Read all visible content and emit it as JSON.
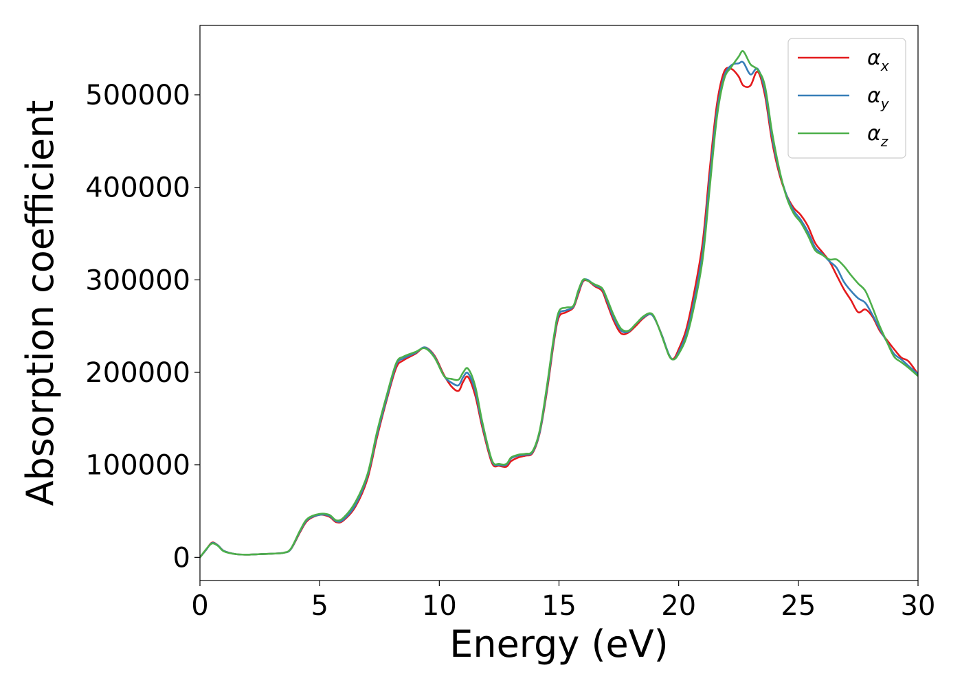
{
  "chart_data": {
    "type": "line",
    "title": "",
    "xlabel": "Energy (eV)",
    "ylabel": "Absorption coefficient",
    "xlim": [
      0,
      30
    ],
    "ylim": [
      -25000,
      575000
    ],
    "xticks": [
      0,
      5,
      10,
      15,
      20,
      25,
      30
    ],
    "xtick_labels": [
      "0",
      "5",
      "10",
      "15",
      "20",
      "25",
      "30"
    ],
    "yticks": [
      0,
      100000,
      200000,
      300000,
      400000,
      500000
    ],
    "ytick_labels": [
      "0",
      "100000",
      "200000",
      "300000",
      "400000",
      "500000"
    ],
    "grid": false,
    "legend_position": "top-right",
    "x": [
      0,
      0.25,
      0.5,
      0.75,
      1.0,
      1.5,
      2.0,
      2.5,
      3.0,
      3.5,
      3.8,
      4.2,
      4.5,
      5.0,
      5.4,
      5.7,
      6.0,
      6.5,
      7.0,
      7.4,
      7.8,
      8.2,
      8.5,
      9.0,
      9.4,
      9.8,
      10.2,
      10.5,
      10.8,
      11.0,
      11.2,
      11.5,
      11.8,
      12.2,
      12.5,
      12.8,
      13.0,
      13.3,
      13.6,
      13.9,
      14.2,
      14.5,
      14.8,
      15.0,
      15.3,
      15.6,
      15.8,
      16.0,
      16.2,
      16.5,
      16.8,
      17.0,
      17.3,
      17.6,
      17.9,
      18.2,
      18.5,
      18.8,
      19.0,
      19.3,
      19.6,
      19.8,
      20.0,
      20.3,
      20.6,
      21.0,
      21.3,
      21.6,
      21.9,
      22.2,
      22.5,
      22.7,
      23.0,
      23.3,
      23.6,
      23.9,
      24.2,
      24.5,
      24.8,
      25.1,
      25.4,
      25.7,
      26.0,
      26.3,
      26.6,
      26.9,
      27.2,
      27.5,
      27.8,
      28.1,
      28.4,
      28.7,
      29.0,
      29.3,
      29.6,
      30.0
    ],
    "series": [
      {
        "name": "α_x",
        "color": "#e41a1c",
        "values": [
          0,
          8000,
          16000,
          13000,
          7000,
          3500,
          3000,
          3500,
          4000,
          5000,
          9000,
          28000,
          40000,
          46000,
          44000,
          38000,
          40000,
          55000,
          85000,
          130000,
          170000,
          205000,
          213000,
          220000,
          227000,
          218000,
          197000,
          185000,
          180000,
          190000,
          195000,
          175000,
          140000,
          102000,
          99000,
          98000,
          104000,
          108000,
          110000,
          113000,
          135000,
          180000,
          235000,
          260000,
          265000,
          270000,
          284000,
          298000,
          299000,
          293000,
          288000,
          275000,
          255000,
          242000,
          243000,
          250000,
          258000,
          263000,
          258000,
          240000,
          218000,
          215000,
          225000,
          245000,
          280000,
          340000,
          420000,
          490000,
          525000,
          528000,
          520000,
          510000,
          510000,
          525000,
          500000,
          450000,
          415000,
          392000,
          378000,
          370000,
          358000,
          340000,
          330000,
          320000,
          305000,
          290000,
          278000,
          265000,
          268000,
          260000,
          245000,
          235000,
          225000,
          216000,
          212000,
          198000
        ]
      },
      {
        "name": "α_y",
        "color": "#377eb8",
        "values": [
          0,
          8000,
          15500,
          13000,
          7000,
          3500,
          3000,
          3500,
          4000,
          5000,
          9000,
          29000,
          41000,
          46000,
          45000,
          39000,
          41000,
          57000,
          88000,
          133000,
          172000,
          208000,
          215000,
          221000,
          227000,
          217000,
          196000,
          189000,
          186000,
          195000,
          199000,
          180000,
          143000,
          104000,
          100000,
          100000,
          107000,
          110000,
          111000,
          114000,
          136000,
          183000,
          238000,
          263000,
          267000,
          271000,
          286000,
          299000,
          300000,
          294000,
          290000,
          278000,
          258000,
          245000,
          244000,
          252000,
          259000,
          263000,
          258000,
          240000,
          219000,
          214000,
          222000,
          240000,
          272000,
          330000,
          410000,
          482000,
          520000,
          532000,
          534000,
          535000,
          522000,
          528000,
          505000,
          455000,
          418000,
          392000,
          375000,
          365000,
          352000,
          335000,
          328000,
          320000,
          313000,
          298000,
          288000,
          280000,
          275000,
          262000,
          247000,
          233000,
          220000,
          214000,
          207000,
          198000
        ]
      },
      {
        "name": "α_z",
        "color": "#4daf4a",
        "values": [
          0,
          8500,
          15000,
          12500,
          6500,
          3500,
          3000,
          3500,
          4000,
          5000,
          9500,
          30000,
          42000,
          47000,
          46000,
          40000,
          43000,
          60000,
          90000,
          136000,
          175000,
          210000,
          217000,
          222000,
          226000,
          216000,
          196000,
          193000,
          192000,
          200000,
          204000,
          185000,
          146000,
          105000,
          101000,
          101000,
          108000,
          111000,
          112000,
          115000,
          138000,
          186000,
          241000,
          266000,
          270000,
          272000,
          288000,
          300000,
          299000,
          295000,
          291000,
          280000,
          261000,
          247000,
          245000,
          252000,
          260000,
          264000,
          259000,
          239000,
          218000,
          214000,
          220000,
          236000,
          266000,
          322000,
          400000,
          476000,
          517000,
          530000,
          541000,
          547000,
          533000,
          527000,
          510000,
          460000,
          420000,
          390000,
          372000,
          362000,
          348000,
          332000,
          327000,
          322000,
          322000,
          315000,
          305000,
          296000,
          288000,
          270000,
          250000,
          233000,
          217000,
          211000,
          205000,
          196000
        ]
      }
    ]
  }
}
